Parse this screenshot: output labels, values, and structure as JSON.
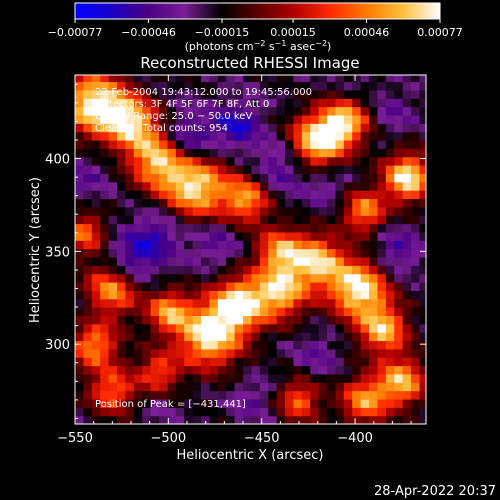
{
  "chart_data": {
    "type": "heatmap",
    "title": "Reconstructed RHESSI Image",
    "xlabel": "Heliocentric X (arcsec)",
    "ylabel": "Heliocentric Y (arcsec)",
    "xlim": [
      -550,
      -362
    ],
    "ylim": [
      257,
      445
    ],
    "x_ticks": [
      -550,
      -500,
      -450,
      -400
    ],
    "x_tick_labels": [
      "−550",
      "−500",
      "−450",
      "−400"
    ],
    "y_ticks": [
      300,
      350,
      400
    ],
    "y_tick_labels": [
      "300",
      "350",
      "400"
    ],
    "colorbar": {
      "ticks": [
        -0.00077,
        -0.00046,
        -0.00015,
        0.00015,
        0.00046,
        0.00077
      ],
      "tick_labels": [
        "−0.00077",
        "−0.00046",
        "−0.00015",
        "0.00015",
        "0.00046",
        "0.00077"
      ],
      "unit_main": "(photons cm",
      "unit_sup1": "−2",
      "unit_mid": " s",
      "unit_sup2": "−1",
      "unit_end": " asec",
      "unit_sup3": "−2",
      "unit_close": ")",
      "colors": [
        "#0000ff",
        "#1a00c8",
        "#4b0082",
        "#7a1e96",
        "#000000",
        "#5a0000",
        "#b00000",
        "#ff2a00",
        "#ff7a00",
        "#ffc040",
        "#ffffff"
      ]
    },
    "annotations": [
      "22-Feb-2004 19:43:12.000 to 19:45:56.000",
      "Detectors: 3F 4F 5F 6F 7F 8F, Att 0",
      "Energy Range: 25.0 − 50.0 keV",
      "Clean      Total counts: 954"
    ],
    "peak_text": "Position of Peak = [−431,441]",
    "grid": false,
    "blobs": [
      {
        "x": -540,
        "y": 430,
        "v": 0.00077,
        "r": 12
      },
      {
        "x": -520,
        "y": 420,
        "v": 0.0006,
        "r": 10
      },
      {
        "x": -505,
        "y": 400,
        "v": 0.00065,
        "r": 11
      },
      {
        "x": -485,
        "y": 385,
        "v": 0.0007,
        "r": 12
      },
      {
        "x": -458,
        "y": 378,
        "v": 0.0005,
        "r": 9
      },
      {
        "x": -420,
        "y": 410,
        "v": 0.00077,
        "r": 10
      },
      {
        "x": -405,
        "y": 420,
        "v": 0.0006,
        "r": 9
      },
      {
        "x": -372,
        "y": 390,
        "v": 0.00077,
        "r": 9
      },
      {
        "x": -395,
        "y": 372,
        "v": 0.0005,
        "r": 8
      },
      {
        "x": -530,
        "y": 330,
        "v": 0.00055,
        "r": 10
      },
      {
        "x": -540,
        "y": 300,
        "v": 0.0005,
        "r": 9
      },
      {
        "x": -478,
        "y": 305,
        "v": 0.00077,
        "r": 12
      },
      {
        "x": -462,
        "y": 322,
        "v": 0.0007,
        "r": 10
      },
      {
        "x": -500,
        "y": 318,
        "v": 0.0005,
        "r": 8
      },
      {
        "x": -440,
        "y": 328,
        "v": 0.0006,
        "r": 10
      },
      {
        "x": -440,
        "y": 350,
        "v": 0.0005,
        "r": 9
      },
      {
        "x": -420,
        "y": 345,
        "v": 0.0006,
        "r": 10
      },
      {
        "x": -398,
        "y": 330,
        "v": 0.00077,
        "r": 11
      },
      {
        "x": -385,
        "y": 308,
        "v": 0.0006,
        "r": 9
      },
      {
        "x": -375,
        "y": 280,
        "v": 0.0006,
        "r": 9
      },
      {
        "x": -395,
        "y": 270,
        "v": 0.0005,
        "r": 9
      },
      {
        "x": -430,
        "y": 270,
        "v": 0.0004,
        "r": 8
      },
      {
        "x": -530,
        "y": 275,
        "v": 0.0004,
        "r": 9
      },
      {
        "x": -505,
        "y": 285,
        "v": 0.00035,
        "r": 8
      },
      {
        "x": -545,
        "y": 360,
        "v": 0.0004,
        "r": 8
      },
      {
        "x": -520,
        "y": 345,
        "v": -0.0006,
        "r": 10
      },
      {
        "x": -490,
        "y": 410,
        "v": -0.0007,
        "r": 10
      },
      {
        "x": -463,
        "y": 418,
        "v": -0.0006,
        "r": 9
      },
      {
        "x": -440,
        "y": 395,
        "v": -0.0005,
        "r": 10
      },
      {
        "x": -505,
        "y": 360,
        "v": -0.0005,
        "r": 10
      },
      {
        "x": -545,
        "y": 390,
        "v": -0.0004,
        "r": 9
      },
      {
        "x": -475,
        "y": 355,
        "v": -0.00045,
        "r": 9
      },
      {
        "x": -415,
        "y": 385,
        "v": -0.0004,
        "r": 8
      },
      {
        "x": -378,
        "y": 350,
        "v": -0.0005,
        "r": 9
      },
      {
        "x": -420,
        "y": 295,
        "v": -0.0004,
        "r": 8
      },
      {
        "x": -505,
        "y": 265,
        "v": -0.0003,
        "r": 8
      },
      {
        "x": -455,
        "y": 270,
        "v": -0.0004,
        "r": 8
      },
      {
        "x": -545,
        "y": 315,
        "v": -0.0003,
        "r": 7
      },
      {
        "x": -380,
        "y": 425,
        "v": -0.0004,
        "r": 8
      },
      {
        "x": -400,
        "y": 440,
        "v": -0.0003,
        "r": 7
      }
    ]
  },
  "footer": {
    "timestamp": "28-Apr-2022 20:37"
  }
}
